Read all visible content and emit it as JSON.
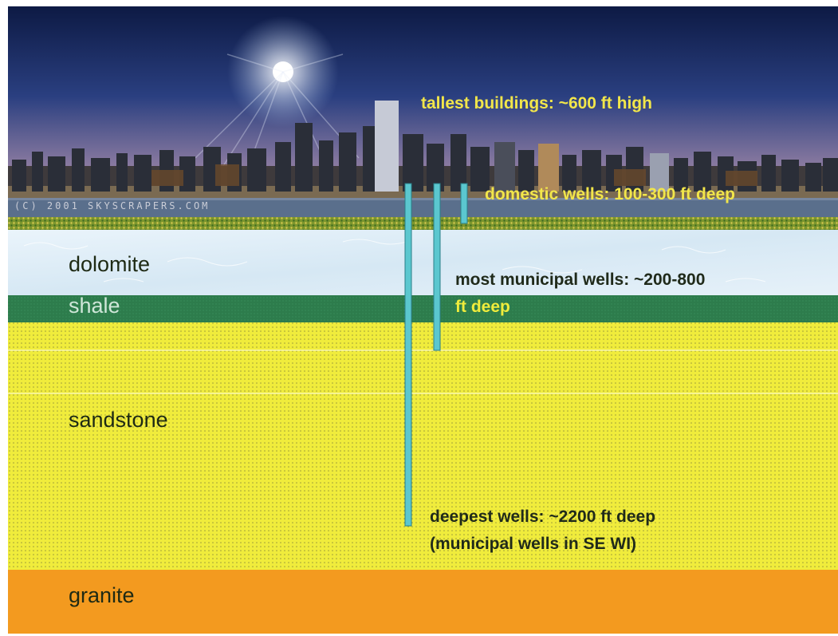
{
  "copyright": "(C) 2001 SKYSCRAPERS.COM",
  "layers": {
    "dolomite": "dolomite",
    "shale": "shale",
    "sandstone": "sandstone",
    "granite": "granite"
  },
  "annotations": {
    "buildings": "tallest buildings: ~600 ft high",
    "domestic_wells": "domestic wells: 100-300 ft deep",
    "municipal_line1": "most municipal wells: ~200-800",
    "municipal_line2": "ft deep",
    "deepest_line1": "deepest wells: ~2200 ft deep",
    "deepest_line2": "(municipal wells in SE WI)"
  },
  "colors": {
    "sky_top": "#0f1e4a",
    "sky_horizon": "#c89a78",
    "water": "#5a6f8c",
    "grass": "#6f8f2c",
    "dolomite": "#dfeef8",
    "shale": "#2f7f4f",
    "sandstone": "#f0ec3c",
    "granite": "#f39a1f",
    "well": "#5bc7cf"
  }
}
